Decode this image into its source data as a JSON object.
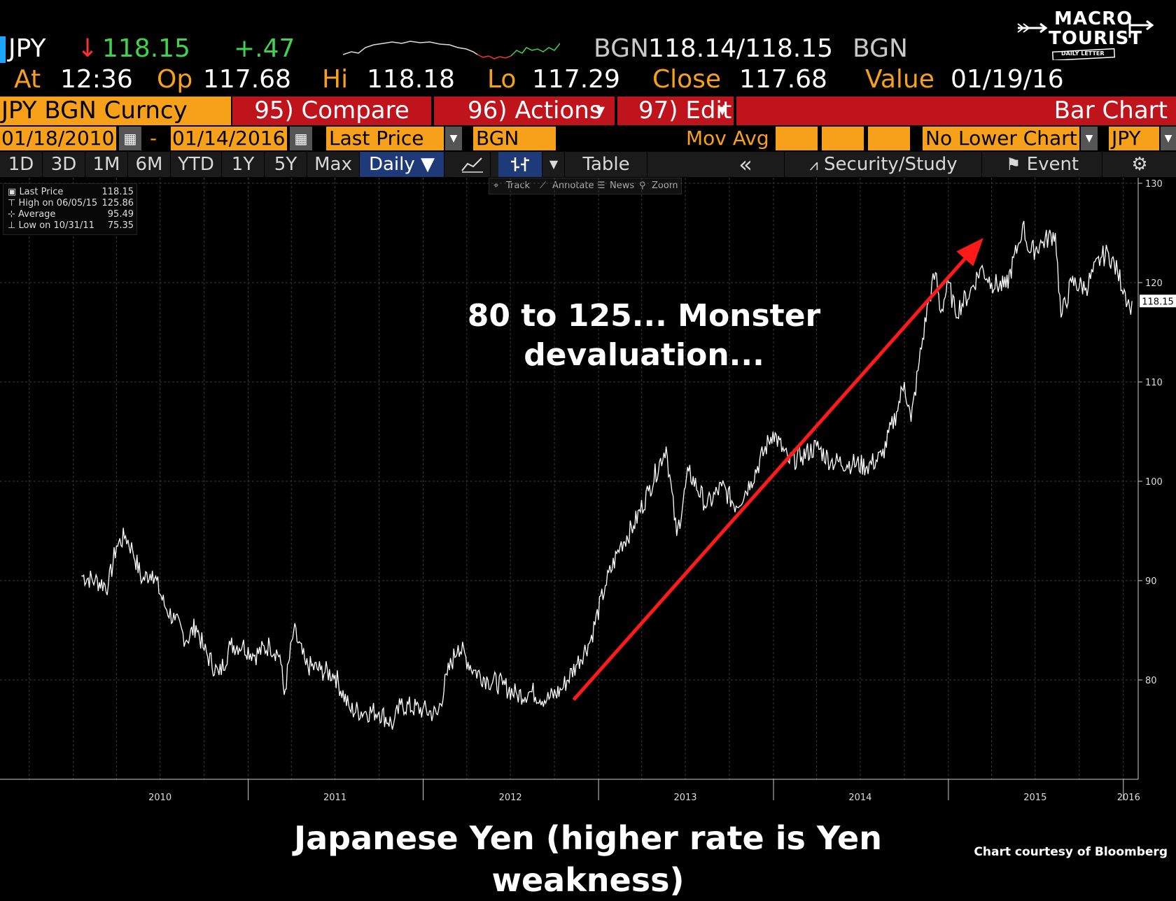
{
  "header": {
    "ticker": "JPY",
    "arrow": "↓",
    "last": "118.15",
    "change": "+.47",
    "bgn_label1": "BGN",
    "bid_ask": "118.14/118.15",
    "bgn_label2": "BGN",
    "at_label": "At",
    "at_value": "12:36",
    "op_label": "Op",
    "op_value": "117.68",
    "hi_label": "Hi",
    "hi_value": "118.18",
    "lo_label": "Lo",
    "lo_value": "117.29",
    "close_label": "Close",
    "close_value": "117.68",
    "value_label": "Value",
    "value_value": "01/19/16"
  },
  "toolbar": {
    "security": "JPY BGN Curncy",
    "compare": "95) Compare",
    "actions": "96) Actions",
    "edit": "97) Edit",
    "chart_type": "Bar Chart",
    "start_date": "01/18/2010",
    "dash": "-",
    "end_date": "01/14/2016",
    "price_field": "Last Price",
    "source": "BGN",
    "mov_avg": "Mov Avg",
    "lower_chart": "No Lower Chart",
    "currency": "JPY"
  },
  "tabs": [
    {
      "label": "1D"
    },
    {
      "label": "3D"
    },
    {
      "label": "1M"
    },
    {
      "label": "6M"
    },
    {
      "label": "YTD"
    },
    {
      "label": "1Y"
    },
    {
      "label": "5Y"
    },
    {
      "label": "Max"
    },
    {
      "label": "Daily ▼"
    }
  ],
  "toolbar2": {
    "table": "Table",
    "collapse": "«",
    "security_study": "Security/Study",
    "event": "Event"
  },
  "mini_tools": [
    "Track",
    "Annotate",
    "News",
    "Zoom"
  ],
  "legend": {
    "last_label": "Last Price",
    "last_value": "118.15",
    "high_label": "High on 06/05/15",
    "high_value": "125.86",
    "avg_label": "Average",
    "avg_value": "95.49",
    "low_label": "Low on 10/31/11",
    "low_value": "75.35"
  },
  "logo": {
    "line1": "MACRO",
    "line2": "TOURIST",
    "line3": "DAILY LETTER"
  },
  "annotation": {
    "line1": "80 to 125...  Monster",
    "line2": "devaluation..."
  },
  "caption": "Japanese Yen (higher rate is Yen weakness)",
  "credit": "Chart courtesy of Bloomberg",
  "colors": {
    "orange": "#f7a11a",
    "red_button": "#c0141c",
    "green": "#3fd34f",
    "arrow": "#ff1a1a",
    "line": "#ffffff"
  },
  "chart_data": {
    "type": "line",
    "title": "",
    "xlabel": "",
    "ylabel": "",
    "ylim": [
      70,
      130
    ],
    "yticks": [
      80,
      90,
      100,
      110,
      120,
      130
    ],
    "xtick_labels": [
      "2010",
      "2011",
      "2012",
      "2013",
      "2014",
      "2015",
      "2016"
    ],
    "last_label": "118.15",
    "grid": true,
    "series": [
      {
        "values": [
          {
            "x": "2010-01-18",
            "y": 90.5
          },
          {
            "x": "2010-02-15",
            "y": 90.0
          },
          {
            "x": "2010-03-15",
            "y": 89.5
          },
          {
            "x": "2010-04-01",
            "y": 93.5
          },
          {
            "x": "2010-04-20",
            "y": 94.5
          },
          {
            "x": "2010-05-05",
            "y": 93.0
          },
          {
            "x": "2010-05-25",
            "y": 90.0
          },
          {
            "x": "2010-06-15",
            "y": 91.0
          },
          {
            "x": "2010-07-10",
            "y": 87.5
          },
          {
            "x": "2010-08-01",
            "y": 86.0
          },
          {
            "x": "2010-08-25",
            "y": 84.0
          },
          {
            "x": "2010-09-14",
            "y": 85.5
          },
          {
            "x": "2010-10-01",
            "y": 83.0
          },
          {
            "x": "2010-11-01",
            "y": 80.5
          },
          {
            "x": "2010-11-25",
            "y": 83.5
          },
          {
            "x": "2010-12-20",
            "y": 83.5
          },
          {
            "x": "2011-01-15",
            "y": 82.5
          },
          {
            "x": "2011-02-15",
            "y": 83.5
          },
          {
            "x": "2011-03-08",
            "y": 82.5
          },
          {
            "x": "2011-03-17",
            "y": 78.5
          },
          {
            "x": "2011-04-06",
            "y": 85.0
          },
          {
            "x": "2011-05-01",
            "y": 81.5
          },
          {
            "x": "2011-06-01",
            "y": 81.0
          },
          {
            "x": "2011-07-01",
            "y": 80.5
          },
          {
            "x": "2011-08-01",
            "y": 77.0
          },
          {
            "x": "2011-09-01",
            "y": 76.8
          },
          {
            "x": "2011-10-01",
            "y": 76.8
          },
          {
            "x": "2011-10-31",
            "y": 75.5
          },
          {
            "x": "2011-11-15",
            "y": 77.5
          },
          {
            "x": "2011-12-31",
            "y": 77.0
          },
          {
            "x": "2012-01-31",
            "y": 76.5
          },
          {
            "x": "2012-02-20",
            "y": 80.5
          },
          {
            "x": "2012-03-14",
            "y": 83.5
          },
          {
            "x": "2012-04-15",
            "y": 81.0
          },
          {
            "x": "2012-05-15",
            "y": 80.0
          },
          {
            "x": "2012-06-15",
            "y": 79.5
          },
          {
            "x": "2012-07-15",
            "y": 78.5
          },
          {
            "x": "2012-08-15",
            "y": 78.8
          },
          {
            "x": "2012-09-15",
            "y": 78.0
          },
          {
            "x": "2012-10-15",
            "y": 79.0
          },
          {
            "x": "2012-11-15",
            "y": 81.5
          },
          {
            "x": "2012-12-15",
            "y": 84.0
          },
          {
            "x": "2013-01-15",
            "y": 89.5
          },
          {
            "x": "2013-02-15",
            "y": 93.5
          },
          {
            "x": "2013-03-15",
            "y": 95.5
          },
          {
            "x": "2013-04-15",
            "y": 99.0
          },
          {
            "x": "2013-05-22",
            "y": 103.5
          },
          {
            "x": "2013-06-13",
            "y": 94.5
          },
          {
            "x": "2013-07-08",
            "y": 101.0
          },
          {
            "x": "2013-08-15",
            "y": 97.5
          },
          {
            "x": "2013-09-15",
            "y": 99.5
          },
          {
            "x": "2013-10-15",
            "y": 97.5
          },
          {
            "x": "2013-11-15",
            "y": 100.0
          },
          {
            "x": "2013-12-31",
            "y": 105.0
          },
          {
            "x": "2014-02-01",
            "y": 102.0
          },
          {
            "x": "2014-03-01",
            "y": 102.5
          },
          {
            "x": "2014-04-01",
            "y": 103.5
          },
          {
            "x": "2014-05-01",
            "y": 102.0
          },
          {
            "x": "2014-06-15",
            "y": 101.8
          },
          {
            "x": "2014-07-15",
            "y": 101.5
          },
          {
            "x": "2014-08-15",
            "y": 102.5
          },
          {
            "x": "2014-09-15",
            "y": 107.0
          },
          {
            "x": "2014-10-01",
            "y": 110.0
          },
          {
            "x": "2014-10-15",
            "y": 106.0
          },
          {
            "x": "2014-11-01",
            "y": 112.0
          },
          {
            "x": "2014-11-20",
            "y": 118.0
          },
          {
            "x": "2014-12-05",
            "y": 121.0
          },
          {
            "x": "2014-12-16",
            "y": 117.0
          },
          {
            "x": "2015-01-01",
            "y": 120.0
          },
          {
            "x": "2015-01-15",
            "y": 117.0
          },
          {
            "x": "2015-02-15",
            "y": 119.0
          },
          {
            "x": "2015-03-10",
            "y": 121.5
          },
          {
            "x": "2015-04-01",
            "y": 120.0
          },
          {
            "x": "2015-05-01",
            "y": 119.5
          },
          {
            "x": "2015-05-28",
            "y": 124.0
          },
          {
            "x": "2015-06-05",
            "y": 125.86
          },
          {
            "x": "2015-06-20",
            "y": 123.0
          },
          {
            "x": "2015-07-15",
            "y": 124.0
          },
          {
            "x": "2015-08-12",
            "y": 125.0
          },
          {
            "x": "2015-08-24",
            "y": 116.5
          },
          {
            "x": "2015-09-15",
            "y": 120.0
          },
          {
            "x": "2015-10-15",
            "y": 119.5
          },
          {
            "x": "2015-11-15",
            "y": 122.5
          },
          {
            "x": "2015-12-01",
            "y": 123.0
          },
          {
            "x": "2015-12-20",
            "y": 121.0
          },
          {
            "x": "2016-01-05",
            "y": 119.0
          },
          {
            "x": "2016-01-14",
            "y": 117.5
          },
          {
            "x": "2016-01-19",
            "y": 118.15
          }
        ]
      }
    ],
    "annotation_arrow": {
      "from": {
        "x": "2012-11-10",
        "y": 78.0
      },
      "to": {
        "x": "2015-03-15",
        "y": 124.5
      }
    }
  }
}
